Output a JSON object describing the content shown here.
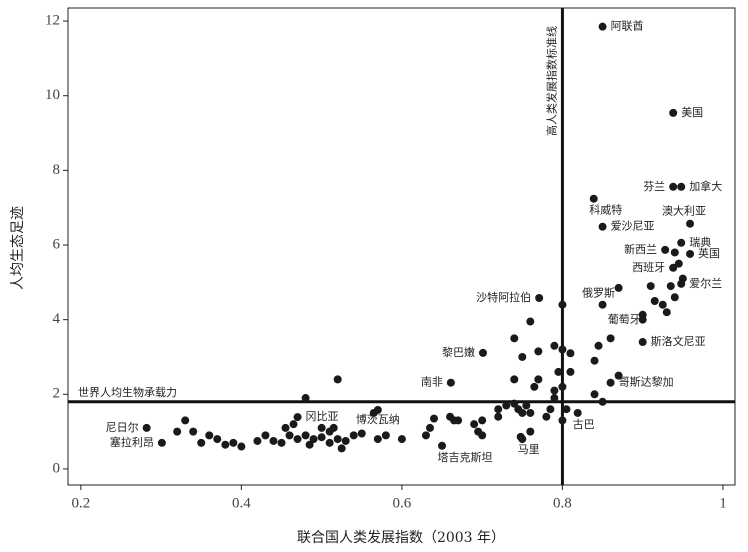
{
  "chart_data": {
    "type": "scatter",
    "x_label": "联合国人类发展指数（2003 年）",
    "y_label": "人均生态足迹",
    "xlim": [
      0.184,
      1.015
    ],
    "ylim": [
      -0.43,
      12.35
    ],
    "xticks": [
      0.2,
      0.4,
      0.6,
      0.8,
      1
    ],
    "yticks": [
      0,
      2,
      4,
      6,
      8,
      10,
      12
    ],
    "color": "#1a1a1a",
    "reference_lines": [
      {
        "axis": "x",
        "value": 0.8,
        "label": "高人类发展指数标准线"
      },
      {
        "axis": "y",
        "value": 1.8,
        "label": "世界人均生物承载力"
      }
    ],
    "x": [
      0.85,
      0.938,
      0.938,
      0.948,
      0.839,
      0.959,
      0.85,
      0.948,
      0.928,
      0.959,
      0.938,
      0.948,
      0.771,
      0.85,
      0.9,
      0.9,
      0.701,
      0.661,
      0.86,
      0.819,
      0.282,
      0.301,
      0.47,
      0.57,
      0.65,
      0.748,
      0.32,
      0.33,
      0.34,
      0.35,
      0.36,
      0.37,
      0.38,
      0.39,
      0.4,
      0.42,
      0.43,
      0.44,
      0.45,
      0.455,
      0.46,
      0.465,
      0.47,
      0.48,
      0.48,
      0.485,
      0.49,
      0.5,
      0.5,
      0.51,
      0.51,
      0.515,
      0.52,
      0.52,
      0.525,
      0.53,
      0.54,
      0.55,
      0.565,
      0.57,
      0.58,
      0.6,
      0.63,
      0.635,
      0.64,
      0.66,
      0.665,
      0.67,
      0.69,
      0.695,
      0.7,
      0.7,
      0.72,
      0.72,
      0.73,
      0.74,
      0.74,
      0.745,
      0.75,
      0.75,
      0.755,
      0.76,
      0.76,
      0.765,
      0.77,
      0.78,
      0.785,
      0.79,
      0.79,
      0.795,
      0.8,
      0.8,
      0.8,
      0.81,
      0.81,
      0.805,
      0.74,
      0.75,
      0.76,
      0.77,
      0.79,
      0.8,
      0.84,
      0.845,
      0.85,
      0.84,
      0.86,
      0.87,
      0.87,
      0.9,
      0.91,
      0.915,
      0.925,
      0.93,
      0.935,
      0.94,
      0.945,
      0.95,
      0.94
    ],
    "values": [
      11.85,
      9.54,
      7.56,
      7.56,
      7.24,
      6.57,
      6.49,
      6.06,
      5.87,
      5.76,
      5.39,
      4.96,
      4.58,
      4.4,
      4.13,
      3.4,
      3.11,
      2.31,
      2.31,
      1.5,
      1.1,
      0.7,
      1.39,
      1.58,
      0.62,
      0.86,
      1.0,
      1.3,
      1.0,
      0.7,
      0.9,
      0.8,
      0.65,
      0.7,
      0.6,
      0.75,
      0.9,
      0.75,
      0.7,
      1.1,
      0.9,
      1.2,
      0.8,
      1.9,
      0.9,
      0.65,
      0.8,
      1.1,
      0.85,
      0.7,
      1.0,
      1.1,
      0.8,
      2.4,
      0.55,
      0.75,
      0.9,
      0.95,
      1.5,
      0.8,
      0.9,
      0.8,
      0.9,
      1.1,
      1.35,
      1.4,
      1.3,
      1.3,
      1.2,
      1.0,
      1.3,
      0.9,
      1.4,
      1.6,
      1.7,
      1.75,
      2.4,
      1.6,
      1.5,
      0.8,
      1.7,
      1.5,
      1.0,
      2.2,
      2.4,
      1.4,
      1.6,
      2.1,
      1.9,
      2.6,
      2.2,
      1.3,
      3.2,
      3.1,
      2.6,
      1.6,
      3.5,
      3.0,
      3.95,
      3.15,
      3.3,
      4.4,
      2.9,
      3.3,
      1.8,
      2.0,
      3.5,
      4.85,
      2.5,
      4.0,
      4.9,
      4.5,
      4.4,
      4.2,
      4.9,
      5.8,
      5.5,
      5.1,
      4.6
    ],
    "labels": [
      "阿联酋",
      "美国",
      "芬兰",
      "加拿大",
      "科威特",
      "澳大利亚",
      "爱沙尼亚",
      "瑞典",
      "新西兰",
      "英国",
      "西班牙",
      "爱尔兰",
      "沙特阿拉伯",
      "俄罗斯",
      "葡萄牙",
      "斯洛文尼亚",
      "黎巴嫩",
      "南非",
      "哥斯达黎加",
      "古巴",
      "尼日尔",
      "塞拉利昂",
      "冈比亚",
      "博茨瓦纳",
      "塔吉克斯坦",
      "马里",
      null,
      null,
      null,
      null,
      null,
      null,
      null,
      null,
      null,
      null,
      null,
      null,
      null,
      null,
      null,
      null,
      null,
      null,
      null,
      null,
      null,
      null,
      null,
      null,
      null,
      null,
      null,
      null,
      null,
      null,
      null,
      null,
      null,
      null,
      null,
      null,
      null,
      null,
      null,
      null,
      null,
      null,
      null,
      null,
      null,
      null,
      null,
      null,
      null,
      null,
      null,
      null,
      null,
      null,
      null,
      null,
      null,
      null,
      null,
      null,
      null,
      null,
      null,
      null,
      null,
      null,
      null,
      null,
      null,
      null,
      null,
      null,
      null,
      null,
      null,
      null,
      null,
      null,
      null,
      null,
      null,
      null,
      null,
      null,
      null,
      null,
      null,
      null,
      null,
      null,
      null,
      null,
      null
    ]
  }
}
